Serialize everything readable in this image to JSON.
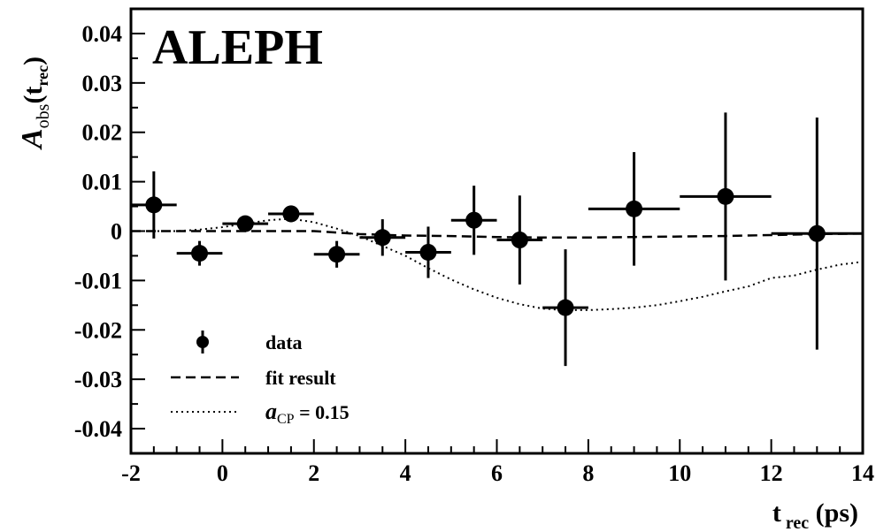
{
  "chart_data": {
    "type": "scatter",
    "experiment_label": "ALEPH",
    "xlabel": {
      "main": "t",
      "sub": "rec",
      "unit": " (ps)"
    },
    "ylabel": {
      "script": "A",
      "sub": "obs",
      "arg_open": "(t",
      "arg_sub": "rec",
      "arg_close": ")"
    },
    "xlim": [
      -2,
      14
    ],
    "ylim": [
      -0.045,
      0.045
    ],
    "x_ticks": [
      {
        "value": -2,
        "label": "-2"
      },
      {
        "value": 0,
        "label": "0"
      },
      {
        "value": 2,
        "label": "2"
      },
      {
        "value": 4,
        "label": "4"
      },
      {
        "value": 6,
        "label": "6"
      },
      {
        "value": 8,
        "label": "8"
      },
      {
        "value": 10,
        "label": "10"
      },
      {
        "value": 12,
        "label": "12"
      },
      {
        "value": 14,
        "label": "14"
      }
    ],
    "y_ticks": [
      {
        "value": 0.04,
        "label": "0.04"
      },
      {
        "value": 0.03,
        "label": "0.03"
      },
      {
        "value": 0.02,
        "label": "0.02"
      },
      {
        "value": 0.01,
        "label": "0.01"
      },
      {
        "value": 0,
        "label": "0"
      },
      {
        "value": -0.01,
        "label": "-0.01"
      },
      {
        "value": -0.02,
        "label": "-0.02"
      },
      {
        "value": -0.03,
        "label": "-0.03"
      },
      {
        "value": -0.04,
        "label": "-0.04"
      }
    ],
    "grid": false,
    "legend_position": "bottom-left",
    "legend": [
      {
        "label": "data",
        "style": "marker"
      },
      {
        "label": "fit result",
        "style": "dashed"
      },
      {
        "label_main": "a",
        "label_sub": "CP",
        "label_rest": " = 0.15",
        "style": "dotted"
      }
    ],
    "series": [
      {
        "name": "data",
        "points": [
          {
            "x": -1.5,
            "y": 0.0053,
            "xerr": 0.5,
            "yerr": 0.0068
          },
          {
            "x": -0.5,
            "y": -0.0045,
            "xerr": 0.5,
            "yerr": 0.0025
          },
          {
            "x": 0.5,
            "y": 0.0015,
            "xerr": 0.5,
            "yerr": 0.0012
          },
          {
            "x": 1.5,
            "y": 0.0035,
            "xerr": 0.5,
            "yerr": 0.0017
          },
          {
            "x": 2.5,
            "y": -0.0047,
            "xerr": 0.5,
            "yerr": 0.0027
          },
          {
            "x": 3.5,
            "y": -0.0013,
            "xerr": 0.5,
            "yerr": 0.0037
          },
          {
            "x": 4.5,
            "y": -0.0043,
            "xerr": 0.5,
            "yerr": 0.0052
          },
          {
            "x": 5.5,
            "y": 0.0022,
            "xerr": 0.5,
            "yerr": 0.007
          },
          {
            "x": 6.5,
            "y": -0.0018,
            "xerr": 0.5,
            "yerr": 0.009
          },
          {
            "x": 7.5,
            "y": -0.0155,
            "xerr": 0.5,
            "yerr": 0.0118
          },
          {
            "x": 9.0,
            "y": 0.0045,
            "xerr": 1.0,
            "yerr": 0.0115
          },
          {
            "x": 11.0,
            "y": 0.007,
            "xerr": 1.0,
            "yerr": 0.017
          },
          {
            "x": 13.0,
            "y": -0.0005,
            "xerr": 1.0,
            "yerr": 0.0235
          }
        ]
      },
      {
        "name": "fit result",
        "x": [
          -2,
          0,
          1,
          2,
          3,
          4,
          5,
          6,
          7,
          8,
          9,
          10,
          11,
          12,
          13,
          14
        ],
        "y": [
          0,
          0,
          0,
          0,
          -0.0006,
          -0.0009,
          -0.001,
          -0.0012,
          -0.0013,
          -0.0013,
          -0.0012,
          -0.0011,
          -0.001,
          -0.0008,
          -0.0006,
          -0.0005
        ]
      },
      {
        "name": "a_CP = 0.15",
        "x": [
          -2,
          -1,
          -0.5,
          0,
          0.5,
          1,
          1.5,
          2,
          2.5,
          3,
          3.5,
          4,
          4.5,
          5,
          5.5,
          6,
          6.5,
          7,
          7.5,
          8,
          8.5,
          9,
          9.5,
          10,
          10.5,
          11,
          11.5,
          12,
          12.5,
          13,
          13.5,
          14
        ],
        "y": [
          0,
          0,
          0.0003,
          0.0008,
          0.0015,
          0.0022,
          0.0025,
          0.0018,
          0.0005,
          -0.001,
          -0.003,
          -0.005,
          -0.0075,
          -0.0098,
          -0.0118,
          -0.0135,
          -0.0148,
          -0.0157,
          -0.016,
          -0.016,
          -0.0158,
          -0.0155,
          -0.015,
          -0.0142,
          -0.0133,
          -0.0122,
          -0.0112,
          -0.0095,
          -0.009,
          -0.0078,
          -0.0068,
          -0.0062
        ]
      }
    ]
  }
}
